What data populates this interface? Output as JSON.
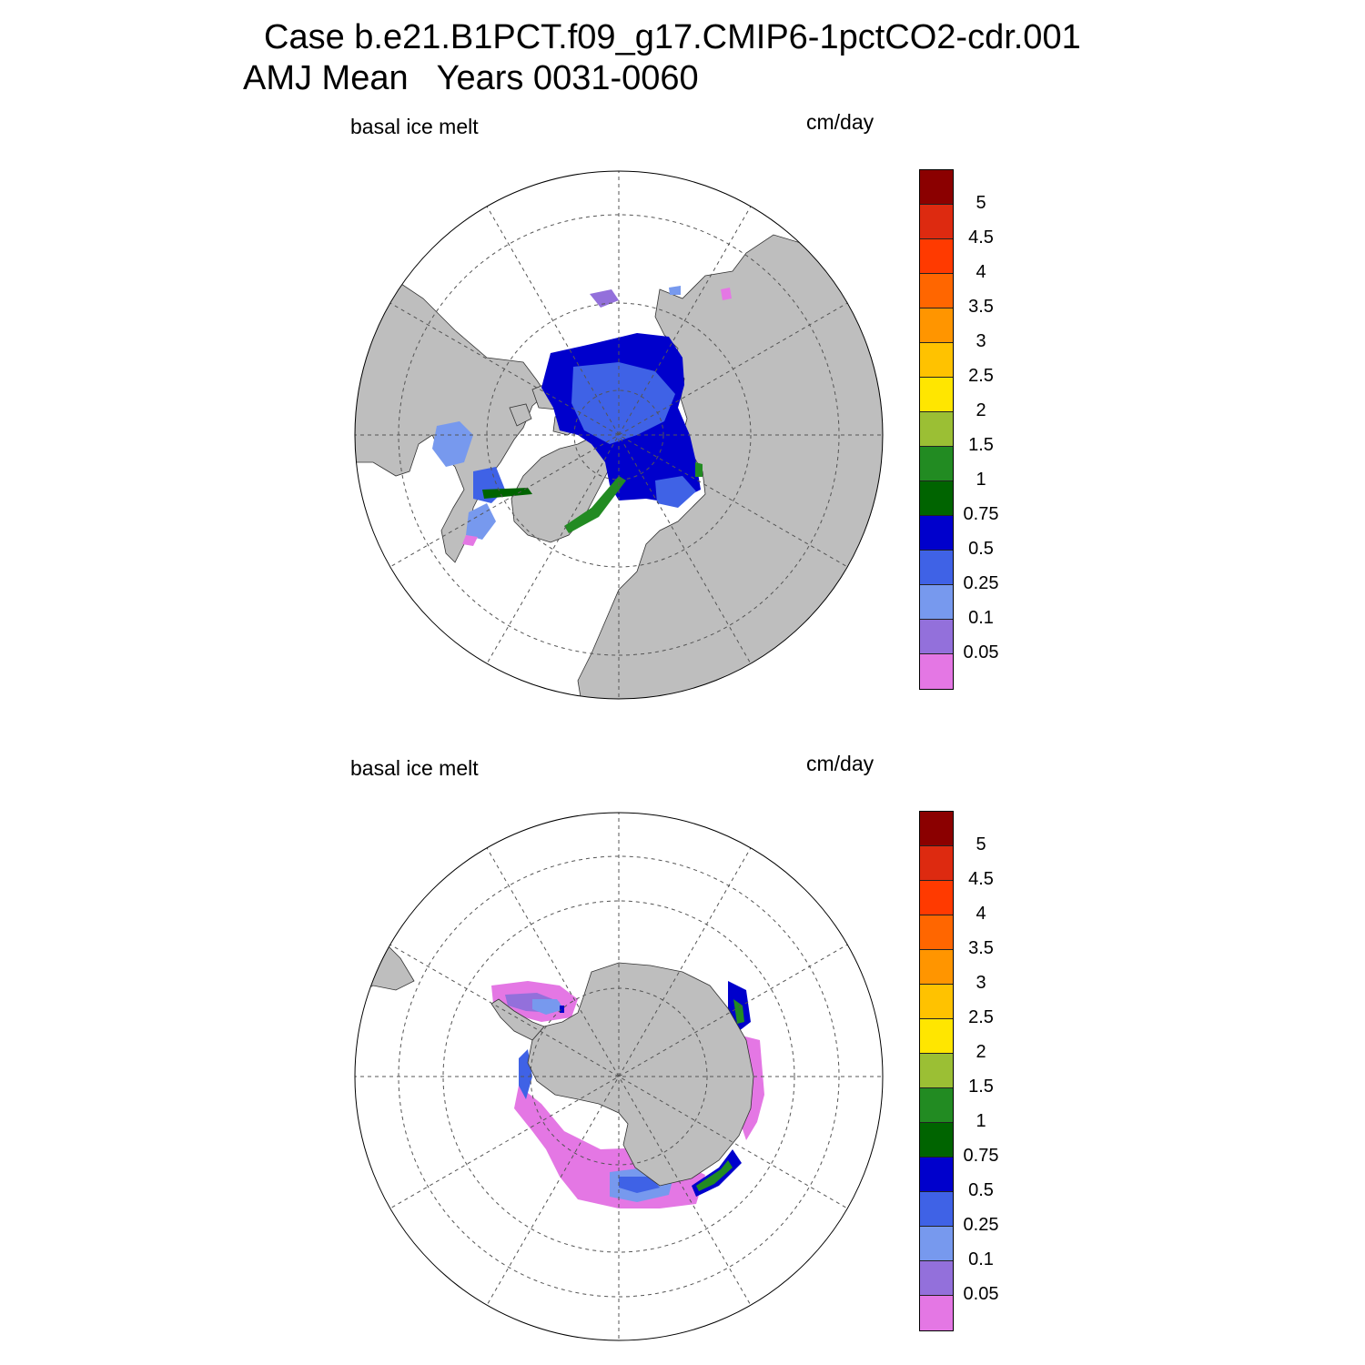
{
  "title": {
    "line1": "Case b.e21.B1PCT.f09_g17.CMIP6-1pctCO2-cdr.001",
    "line2": "AMJ Mean   Years 0031-0060"
  },
  "panels": [
    {
      "id": "arctic",
      "hemisphere": "north",
      "variable": "basal ice melt",
      "units": "cm/day"
    },
    {
      "id": "antarctic",
      "hemisphere": "south",
      "variable": "basal ice melt",
      "units": "cm/day"
    }
  ],
  "colors": {
    "land": "#bebebe",
    "coast": "#333333",
    "grid": "#555555"
  },
  "colorbar": {
    "labels": [
      "5",
      "4.5",
      "4",
      "3.5",
      "3",
      "2.5",
      "2",
      "1.5",
      "1",
      "0.75",
      "0.5",
      "0.25",
      "0.1",
      "0.05"
    ],
    "colors": [
      "#8b0000",
      "#dd2a10",
      "#ff3a00",
      "#ff6600",
      "#ff9500",
      "#ffc200",
      "#ffe600",
      "#9bbf34",
      "#228b22",
      "#006400",
      "#0000cc",
      "#3f62e6",
      "#7799ee",
      "#9370db",
      "#e477e4"
    ]
  }
}
